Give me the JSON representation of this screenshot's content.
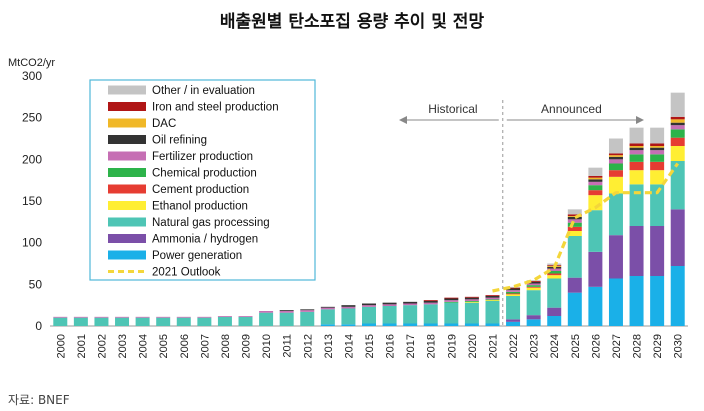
{
  "chart_data": {
    "type": "bar",
    "stacked": true,
    "title": "배출원별 탄소포집 용량 추이 및 전망",
    "ylabel": "MtCO2/yr",
    "ylim": [
      0,
      300
    ],
    "yticks": [
      0,
      50,
      100,
      150,
      200,
      250,
      300
    ],
    "categories": [
      "2000",
      "2001",
      "2002",
      "2003",
      "2004",
      "2005",
      "2006",
      "2007",
      "2008",
      "2009",
      "2010",
      "2011",
      "2012",
      "2013",
      "2014",
      "2015",
      "2016",
      "2017",
      "2018",
      "2019",
      "2020",
      "2021",
      "2022",
      "2023",
      "2024",
      "2025",
      "2026",
      "2027",
      "2028",
      "2029",
      "2030"
    ],
    "series": [
      {
        "name": "Power generation",
        "color": "#1ab0e8",
        "values": [
          0,
          0,
          0,
          0,
          0,
          0,
          0,
          0,
          0,
          0,
          0,
          0,
          0,
          2,
          2,
          3,
          3,
          3,
          3,
          3,
          3,
          3,
          5,
          8,
          12,
          40,
          47,
          57,
          60,
          60,
          72
        ]
      },
      {
        "name": "Ammonia / hydrogen",
        "color": "#7b4fa8",
        "values": [
          0,
          0,
          0,
          0,
          0,
          0,
          0,
          0,
          0,
          0,
          0,
          0,
          0,
          0,
          0,
          0,
          0,
          0,
          0,
          0,
          0,
          0,
          3,
          5,
          10,
          18,
          42,
          52,
          60,
          60,
          68
        ]
      },
      {
        "name": "Natural gas processing",
        "color": "#4ec5b5",
        "values": [
          10,
          10,
          10,
          10,
          10,
          10,
          10,
          10,
          11,
          11,
          16,
          16,
          17,
          18,
          19,
          20,
          21,
          22,
          23,
          25,
          25,
          27,
          28,
          30,
          35,
          50,
          50,
          50,
          50,
          50,
          58
        ]
      },
      {
        "name": "Ethanol production",
        "color": "#ffee33",
        "values": [
          0,
          0,
          0,
          0,
          0,
          0,
          0,
          0,
          0,
          0,
          0,
          0,
          0,
          0,
          0,
          0,
          0,
          0,
          0,
          0,
          1,
          1,
          2,
          3,
          4,
          6,
          18,
          20,
          17,
          17,
          18
        ]
      },
      {
        "name": "Cement production",
        "color": "#e63c32",
        "values": [
          0,
          0,
          0,
          0,
          0,
          0,
          0,
          0,
          0,
          0,
          0,
          0,
          0,
          0,
          0,
          0,
          0,
          0,
          0,
          0,
          0,
          0,
          1,
          1,
          2,
          5,
          6,
          8,
          10,
          10,
          10
        ]
      },
      {
        "name": "Chemical production",
        "color": "#2db34a",
        "values": [
          0,
          0,
          0,
          0,
          0,
          0,
          0,
          0,
          0,
          0,
          0,
          0,
          0,
          0,
          0,
          0,
          0,
          0,
          0,
          1,
          1,
          1,
          2,
          2,
          3,
          5,
          6,
          8,
          9,
          9,
          10
        ]
      },
      {
        "name": "Fertilizer production",
        "color": "#c66fb4",
        "values": [
          1,
          1,
          1,
          1,
          1,
          1,
          1,
          1,
          1,
          1,
          2,
          2,
          2,
          2,
          2,
          2,
          2,
          2,
          2,
          2,
          2,
          2,
          2,
          2,
          3,
          4,
          4,
          5,
          5,
          5,
          5
        ]
      },
      {
        "name": "Oil refining",
        "color": "#333333",
        "values": [
          0,
          0,
          0,
          0,
          0,
          0,
          0,
          0,
          0,
          0,
          0,
          1,
          1,
          1,
          2,
          2,
          2,
          2,
          2,
          2,
          2,
          2,
          2,
          2,
          2,
          3,
          3,
          3,
          3,
          3,
          3
        ]
      },
      {
        "name": "DAC",
        "color": "#f0b828",
        "values": [
          0,
          0,
          0,
          0,
          0,
          0,
          0,
          0,
          0,
          0,
          0,
          0,
          0,
          0,
          0,
          0,
          0,
          0,
          0,
          0,
          0,
          0,
          0,
          0,
          1,
          1,
          2,
          2,
          2,
          2,
          4
        ]
      },
      {
        "name": "Iron and steel production",
        "color": "#b01616",
        "values": [
          0,
          0,
          0,
          0,
          0,
          0,
          0,
          0,
          0,
          0,
          0,
          0,
          0,
          0,
          0,
          0,
          0,
          0,
          1,
          1,
          1,
          1,
          1,
          1,
          1,
          2,
          2,
          2,
          3,
          3,
          3
        ]
      },
      {
        "name": "Other / in evaluation",
        "color": "#c4c4c4",
        "values": [
          0,
          0,
          0,
          0,
          0,
          0,
          0,
          0,
          0,
          0,
          0,
          0,
          0,
          0,
          0,
          0,
          0,
          0,
          0,
          0,
          0,
          0,
          1,
          1,
          2,
          6,
          10,
          18,
          19,
          19,
          29
        ]
      }
    ],
    "outlook": {
      "name": "2021 Outlook",
      "color": "#f4d63a",
      "start_index": 21,
      "values": [
        42,
        47,
        55,
        70,
        130,
        142,
        160,
        160,
        160,
        195
      ]
    },
    "legend_order": [
      "Other / in evaluation",
      "Iron and steel production",
      "DAC",
      "Oil refining",
      "Fertilizer production",
      "Chemical production",
      "Cement production",
      "Ethanol production",
      "Natural gas processing",
      "Ammonia / hydrogen",
      "Power generation",
      "2021 Outlook"
    ],
    "legend_position": "top-left",
    "annotations": {
      "historical": "Historical",
      "announced": "Announced",
      "divider_after": "2021"
    },
    "source": "자료: BNEF"
  }
}
